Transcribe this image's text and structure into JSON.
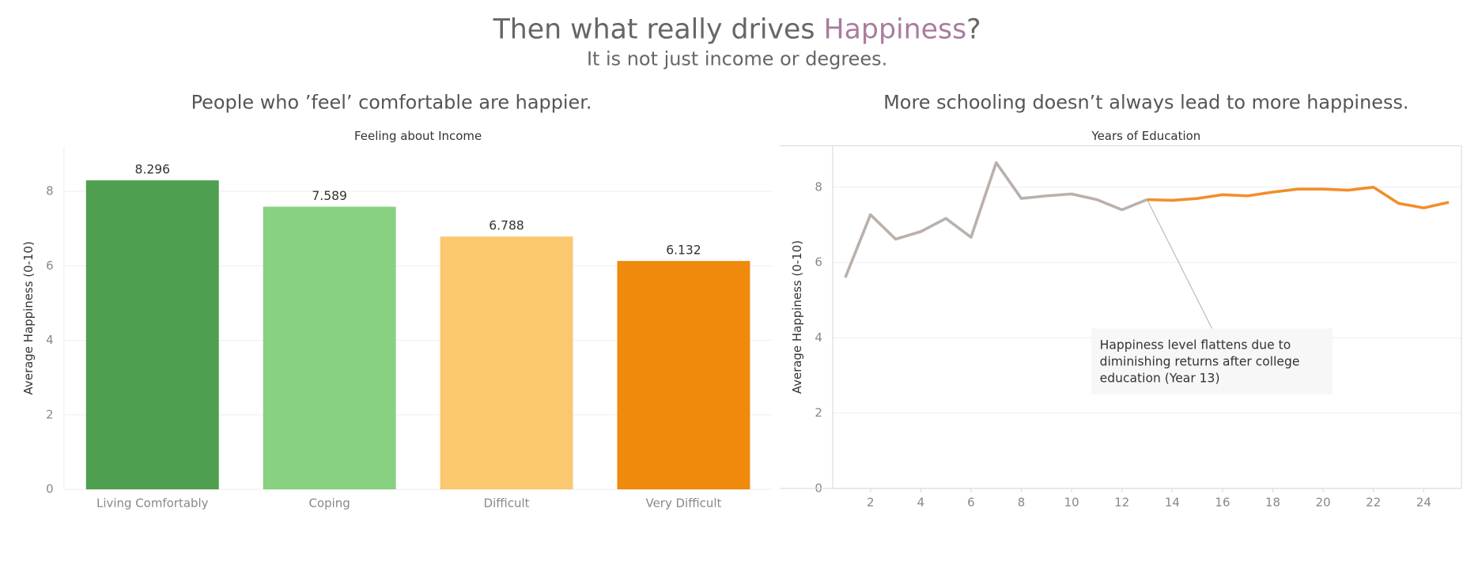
{
  "header": {
    "title_prefix": "Then what really drives ",
    "title_highlight": "Happiness",
    "title_suffix": "?",
    "subtitle": "It is not just income or degrees."
  },
  "chart_data": [
    {
      "type": "bar",
      "title": "People who ’feel’ comfortable are happier.",
      "x_label": "Feeling about Income",
      "y_label": "Average Happiness (0-10)",
      "categories": [
        "Living Comfortably",
        "Coping",
        "Difficult",
        "Very Difficult"
      ],
      "values": [
        8.296,
        7.589,
        6.788,
        6.132
      ],
      "colors": [
        "#4e9f50",
        "#87d180",
        "#fbc86f",
        "#ef8a0c"
      ],
      "ylim": [
        0,
        9.2
      ],
      "yticks": [
        0,
        2,
        4,
        6,
        8
      ],
      "grid": true
    },
    {
      "type": "line",
      "title": "More schooling doesn’t always lead to more happiness.",
      "x_label": "Years of Education",
      "y_label": "Average Happiness (0-10)",
      "x": [
        1,
        2,
        3,
        4,
        5,
        6,
        7,
        8,
        9,
        10,
        11,
        12,
        13,
        14,
        15,
        16,
        17,
        18,
        19,
        20,
        21,
        22,
        23,
        24,
        25
      ],
      "series": [
        {
          "color": "#bab0ac",
          "values": [
            5.6,
            7.27,
            6.62,
            6.82,
            7.17,
            6.67,
            8.65,
            7.7,
            7.77,
            7.82,
            7.67,
            7.4,
            7.67,
            null,
            null,
            null,
            null,
            null,
            null,
            null,
            null,
            null,
            null,
            null,
            null
          ]
        },
        {
          "color": "#f28e2b",
          "values": [
            null,
            null,
            null,
            null,
            null,
            null,
            null,
            null,
            null,
            null,
            null,
            null,
            7.67,
            7.65,
            7.7,
            7.8,
            7.77,
            7.87,
            7.95,
            7.95,
            7.92,
            8.0,
            7.57,
            7.45,
            7.6
          ]
        }
      ],
      "xlim": [
        0.5,
        25.5
      ],
      "xticks": [
        2,
        4,
        6,
        8,
        10,
        12,
        14,
        16,
        18,
        20,
        22,
        24
      ],
      "ylim": [
        0,
        9.1
      ],
      "yticks": [
        0,
        2,
        4,
        6,
        8
      ],
      "grid": true,
      "annotation": {
        "x": 13,
        "y": 7.67,
        "lines": [
          "Happiness level flattens due to",
          "diminishing returns after college",
          "education (Year 13)"
        ]
      }
    }
  ]
}
